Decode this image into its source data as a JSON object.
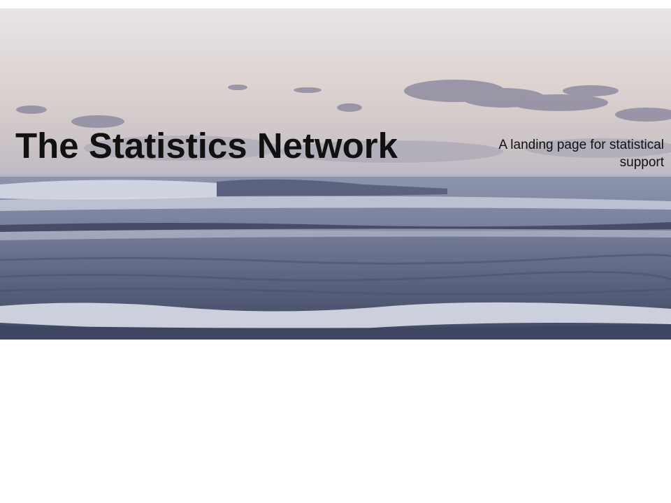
{
  "header": {
    "title": "The Statistics Network",
    "tagline": "A landing page for statistical support"
  },
  "banner": {
    "image_subject": "ocean-waves-at-dusk",
    "colors": {
      "sky_top": "#e9e6e8",
      "sky_glow": "#ddd5d4",
      "cloud": "#8d8a9c",
      "sea": "#6b7390",
      "sea_dark": "#3f4661",
      "foam": "#e6e8f2"
    }
  }
}
